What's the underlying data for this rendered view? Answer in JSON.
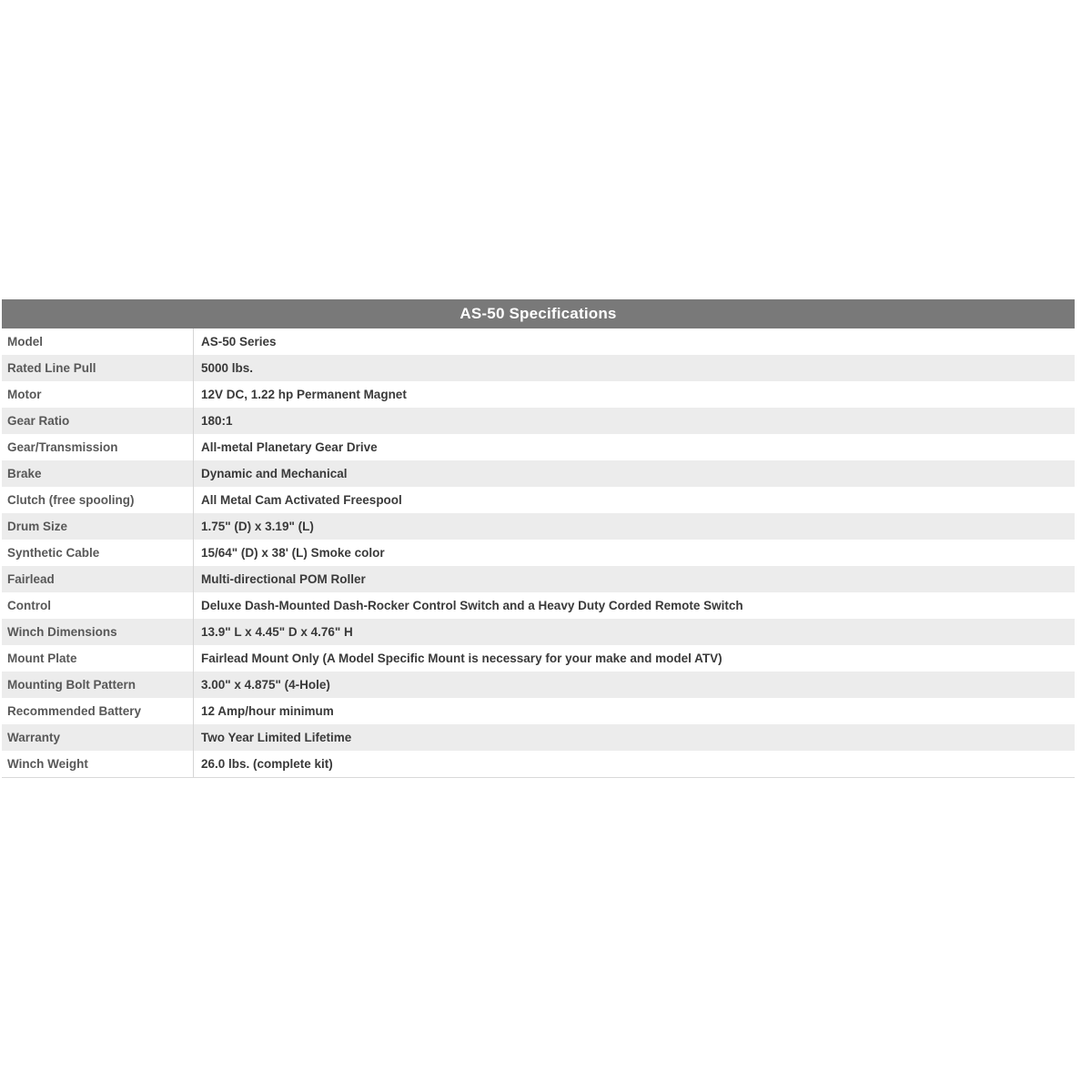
{
  "page": {
    "background_color": "#ffffff"
  },
  "table": {
    "title": "AS-50 Specifications",
    "colors": {
      "header_bg": "#797979",
      "header_text": "#ffffff",
      "row_bg": "#ffffff",
      "row_alt_bg": "#ececec",
      "label_text": "#585858",
      "value_text": "#3a3a3a",
      "divider": "#d5d5d5"
    },
    "columns": [
      "label",
      "value"
    ],
    "rows": [
      {
        "label": "Model",
        "value": "AS-50 Series"
      },
      {
        "label": "Rated Line Pull",
        "value": "5000 lbs."
      },
      {
        "label": "Motor",
        "value": "12V DC, 1.22 hp Permanent Magnet"
      },
      {
        "label": "Gear Ratio",
        "value": "180:1"
      },
      {
        "label": "Gear/Transmission",
        "value": "All-metal Planetary Gear Drive"
      },
      {
        "label": "Brake",
        "value": "Dynamic and Mechanical"
      },
      {
        "label": "Clutch (free spooling)",
        "value": "All Metal Cam Activated Freespool"
      },
      {
        "label": "Drum Size",
        "value": "1.75\" (D) x 3.19\" (L)"
      },
      {
        "label": "Synthetic Cable",
        "value": "15/64\" (D) x 38' (L) Smoke color"
      },
      {
        "label": "Fairlead",
        "value": "Multi-directional POM Roller"
      },
      {
        "label": "Control",
        "value": "Deluxe Dash-Mounted Dash-Rocker Control Switch and a Heavy Duty Corded Remote Switch"
      },
      {
        "label": "Winch Dimensions",
        "value": "13.9\" L x 4.45\" D x 4.76\" H"
      },
      {
        "label": "Mount Plate",
        "value": "Fairlead Mount Only (A Model Specific Mount is necessary for your make and model ATV)"
      },
      {
        "label": "Mounting Bolt Pattern",
        "value": "3.00\" x 4.875\" (4-Hole)"
      },
      {
        "label": "Recommended Battery",
        "value": "12 Amp/hour minimum"
      },
      {
        "label": "Warranty",
        "value": "Two Year Limited Lifetime"
      },
      {
        "label": "Winch Weight",
        "value": "26.0 lbs. (complete kit)"
      }
    ]
  }
}
